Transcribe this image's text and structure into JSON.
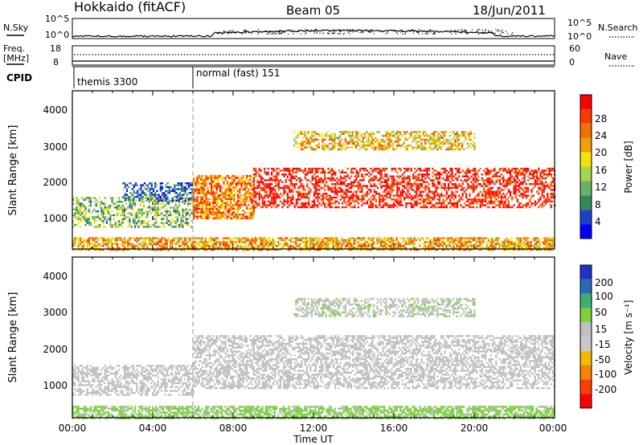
{
  "header": {
    "station": "Hokkaido (fitACF)",
    "beam": "Beam 05",
    "date": "18/Jun/2011"
  },
  "top_strip": {
    "nsky_label": "N.Sky",
    "nsearch_label": "N.Search",
    "left_ticks": [
      "10^5",
      "10^0"
    ],
    "right_ticks": [
      "10^5",
      "10^0"
    ],
    "freq_label_1": "Freq.",
    "freq_label_2": "[MHz]",
    "freq_ticks": [
      "18",
      "8"
    ],
    "nave_label": "Nave",
    "nave_ticks": [
      "60",
      "0"
    ],
    "cpid_label": "CPID",
    "cpid_segments": [
      {
        "label": "themis 3300",
        "start_hour": 0.8
      },
      {
        "label": "normal (fast) 151",
        "start_hour": 6.0
      }
    ]
  },
  "colors": {
    "power_scale": [
      "#0000ff",
      "#1e3fc8",
      "#2e8b57",
      "#66b266",
      "#a8d34a",
      "#f2e600",
      "#f0a000",
      "#f07000",
      "#ff3800",
      "#ff0000"
    ],
    "velocity_scale": [
      "#1e32c8",
      "#2a6ab5",
      "#3cb06e",
      "#7ad13c",
      "#c0c0c0",
      "#c8c8c8",
      "#f5b800",
      "#f58200",
      "#ff3c00",
      "#ff0000"
    ],
    "ground_scatter": "#bebebe",
    "frame": "#000000"
  },
  "chart_data": [
    {
      "type": "heatmap",
      "panel": "power",
      "ylabel": "Slant Range [km]",
      "xlabel": "",
      "xlim": [
        0,
        24
      ],
      "ylim": [
        180,
        4500
      ],
      "yticks": [
        "1000",
        "2000",
        "3000",
        "4000"
      ],
      "xticks": [
        "00:00",
        "04:00",
        "08:00",
        "12:00",
        "16:00",
        "20:00",
        "00:00"
      ],
      "colorbar": {
        "label": "Power [dB]",
        "ticks": [
          "4",
          "8",
          "12",
          "16",
          "20",
          "24",
          "28"
        ],
        "range": [
          0,
          30
        ]
      },
      "echo_bands": [
        {
          "x": [
            0,
            6
          ],
          "y": [
            800,
            1600
          ],
          "value": 12
        },
        {
          "x": [
            2.5,
            6
          ],
          "y": [
            1500,
            2000
          ],
          "value": 6
        },
        {
          "x": [
            6,
            9
          ],
          "y": [
            1000,
            2200
          ],
          "value": 22
        },
        {
          "x": [
            9,
            24
          ],
          "y": [
            1300,
            2400
          ],
          "value": 28
        },
        {
          "x": [
            0,
            24
          ],
          "y": [
            180,
            500
          ],
          "value": 20
        },
        {
          "x": [
            11,
            20
          ],
          "y": [
            2900,
            3400
          ],
          "value": 18
        }
      ]
    },
    {
      "type": "heatmap",
      "panel": "velocity",
      "ylabel": "Slant Range [km]",
      "xlabel": "Time UT",
      "xlim": [
        0,
        24
      ],
      "ylim": [
        180,
        4500
      ],
      "yticks": [
        "1000",
        "2000",
        "3000",
        "4000"
      ],
      "xticks": [
        "00:00",
        "04:00",
        "08:00",
        "12:00",
        "16:00",
        "20:00",
        "00:00"
      ],
      "colorbar": {
        "label": "Velocity [m s⁻¹]",
        "ticks": [
          "200",
          "100",
          "50",
          "15",
          "-15",
          "-50",
          "-100",
          "-200"
        ],
        "range": [
          -250,
          250
        ]
      },
      "echo_bands": [
        {
          "x": [
            0,
            6
          ],
          "y": [
            800,
            1600
          ],
          "value": 0
        },
        {
          "x": [
            6,
            24
          ],
          "y": [
            1000,
            2400
          ],
          "value": 0
        },
        {
          "x": [
            0,
            24
          ],
          "y": [
            180,
            500
          ],
          "value": 60
        },
        {
          "x": [
            11,
            20
          ],
          "y": [
            2900,
            3400
          ],
          "value": 40
        }
      ]
    }
  ]
}
